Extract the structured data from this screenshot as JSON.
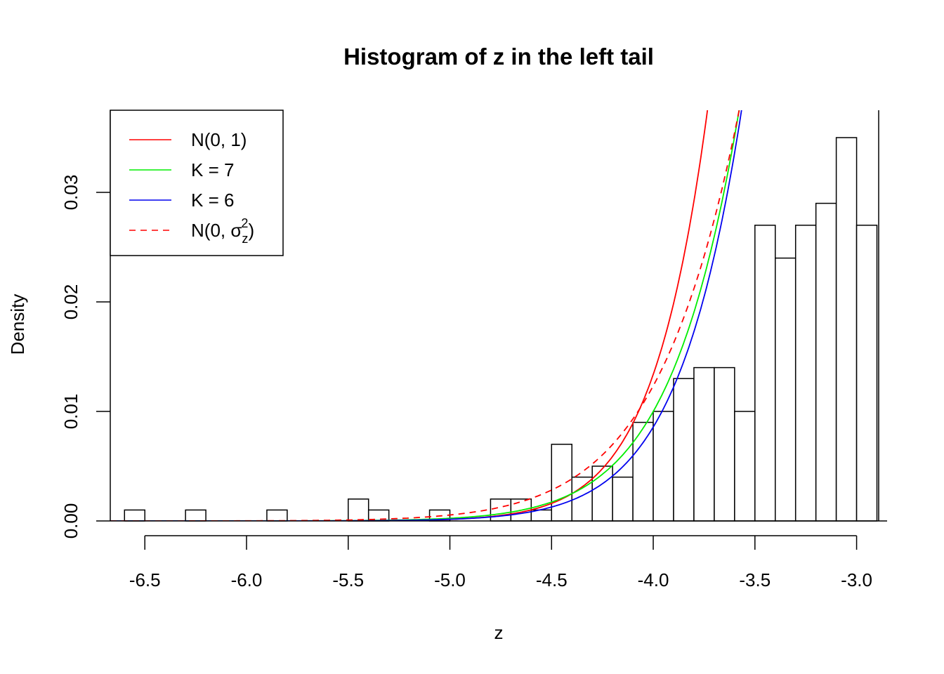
{
  "chart_data": {
    "type": "histogram",
    "title": "Histogram of z in the left tail",
    "xlabel": "z",
    "ylabel": "Density",
    "xlim": [
      -6.67,
      -2.85
    ],
    "ylim": [
      0,
      0.0375
    ],
    "x_ticks": [
      -6.5,
      -6.0,
      -5.5,
      -5.0,
      -4.5,
      -4.0,
      -3.5,
      -3.0
    ],
    "x_tick_labels": [
      "-6.5",
      "-6.0",
      "-5.5",
      "-5.0",
      "-4.5",
      "-4.0",
      "-3.5",
      "-3.0"
    ],
    "y_ticks": [
      0,
      0.01,
      0.02,
      0.03
    ],
    "y_tick_labels": [
      "0.00",
      "0.01",
      "0.02",
      "0.03"
    ],
    "bin_width": 0.1,
    "bins": [
      {
        "x0": -6.6,
        "density": 0.001
      },
      {
        "x0": -6.3,
        "density": 0.001
      },
      {
        "x0": -5.9,
        "density": 0.001
      },
      {
        "x0": -5.5,
        "density": 0.002
      },
      {
        "x0": -5.4,
        "density": 0.001
      },
      {
        "x0": -5.1,
        "density": 0.001
      },
      {
        "x0": -4.8,
        "density": 0.002
      },
      {
        "x0": -4.7,
        "density": 0.002
      },
      {
        "x0": -4.6,
        "density": 0.001
      },
      {
        "x0": -4.5,
        "density": 0.007
      },
      {
        "x0": -4.4,
        "density": 0.004
      },
      {
        "x0": -4.3,
        "density": 0.005
      },
      {
        "x0": -4.2,
        "density": 0.004
      },
      {
        "x0": -4.1,
        "density": 0.009
      },
      {
        "x0": -4.0,
        "density": 0.01
      },
      {
        "x0": -3.9,
        "density": 0.013
      },
      {
        "x0": -3.8,
        "density": 0.014
      },
      {
        "x0": -3.7,
        "density": 0.014
      },
      {
        "x0": -3.6,
        "density": 0.01
      },
      {
        "x0": -3.5,
        "density": 0.027
      },
      {
        "x0": -3.4,
        "density": 0.024
      },
      {
        "x0": -3.3,
        "density": 0.027
      },
      {
        "x0": -3.2,
        "density": 0.029
      },
      {
        "x0": -3.1,
        "density": 0.035
      },
      {
        "x0": -3.0,
        "density": 0.027
      }
    ],
    "series": [
      {
        "name": "N(0, 1)",
        "color": "#ff0000",
        "dash": "solid",
        "sd": 1.0,
        "scale": 100
      },
      {
        "name": "K = 7",
        "color": "#00ee00",
        "dash": "solid",
        "sd": 1.1,
        "scale": 20.5
      },
      {
        "name": "K = 6",
        "color": "#0000ee",
        "dash": "solid",
        "sd": 1.055,
        "scale": 30
      },
      {
        "name": "N(0, σz²)",
        "color": "#ff0000",
        "dash": "dashed",
        "sd": 1.2,
        "scale": 9.6
      }
    ],
    "legend": {
      "position": "top-left",
      "entries": [
        {
          "label": "N(0, 1)"
        },
        {
          "label": "K = 7"
        },
        {
          "label": "K = 6"
        },
        {
          "label_main": "N",
          "label_args": "0, σ",
          "label_sub": "z",
          "label_sup": "2",
          "label": "N(0, σz²)"
        }
      ]
    }
  }
}
